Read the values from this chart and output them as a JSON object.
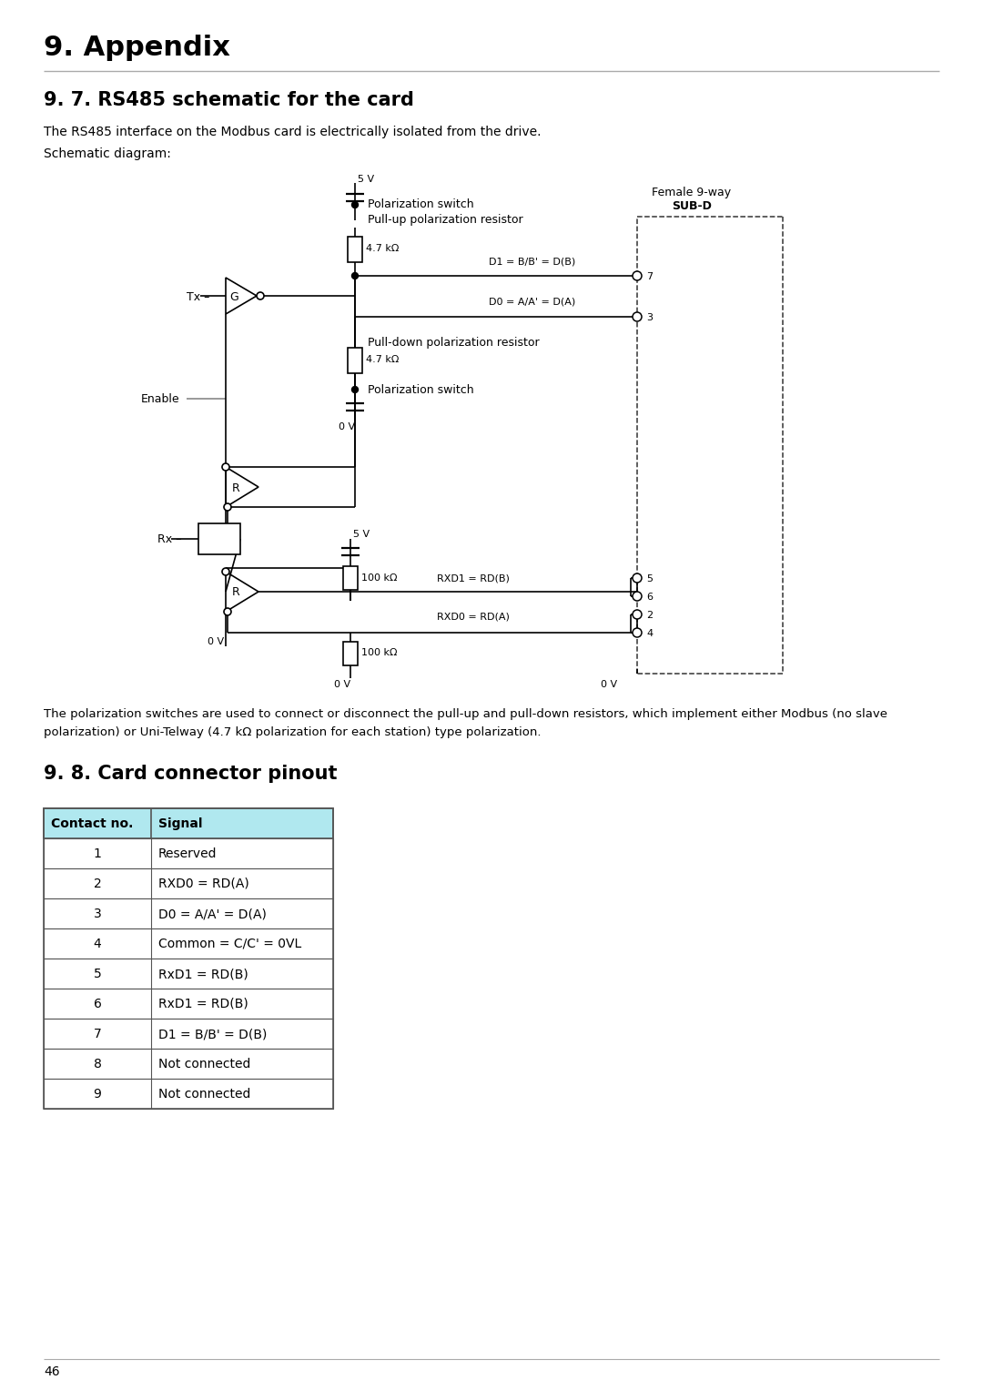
{
  "title": "9. Appendix",
  "section_rs485_title": "9. 7. RS485 schematic for the card",
  "section_rs485_desc1": "The RS485 interface on the Modbus card is electrically isolated from the drive.",
  "section_rs485_desc2": "Schematic diagram:",
  "section_pinout_title": "9. 8. Card connector pinout",
  "footnote_line1": "The polarization switches are used to connect or disconnect the pull-up and pull-down resistors, which implement either Modbus (no slave",
  "footnote_line2": "polarization) or Uni-Telway (4.7 kΩ polarization for each station) type polarization.",
  "page_number": "46",
  "table_header": [
    "Contact no.",
    "Signal"
  ],
  "table_rows": [
    [
      "1",
      "Reserved"
    ],
    [
      "2",
      "RXD0 = RD(A)"
    ],
    [
      "3",
      "D0 = A/A' = D(A)"
    ],
    [
      "4",
      "Common = C/C' = 0VL"
    ],
    [
      "5",
      "RxD1 = RD(B)"
    ],
    [
      "6",
      "RxD1 = RD(B)"
    ],
    [
      "7",
      "D1 = B/B' = D(B)"
    ],
    [
      "8",
      "Not connected"
    ],
    [
      "9",
      "Not connected"
    ]
  ],
  "bg_color": "#ffffff",
  "text_color": "#000000",
  "table_header_bg": "#b0e8ef",
  "table_border_color": "#555555"
}
